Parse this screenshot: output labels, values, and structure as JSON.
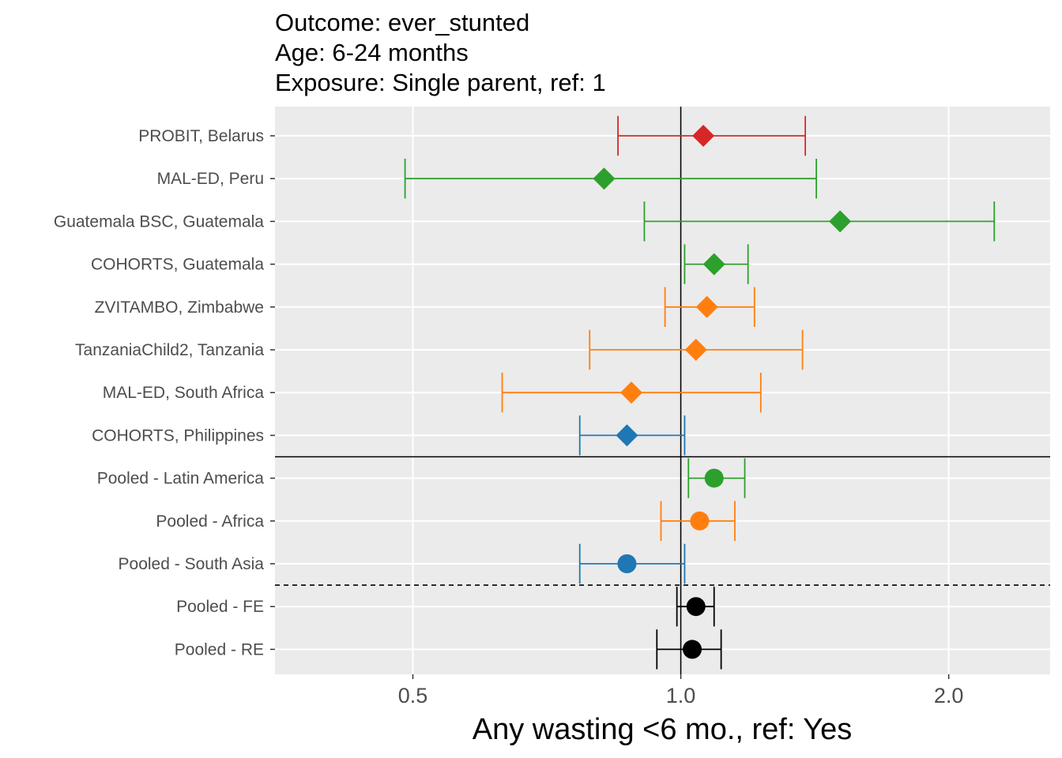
{
  "chart_data": {
    "type": "forest",
    "title_lines": [
      "Outcome: ever_stunted",
      "Age: 6-24 months",
      "Exposure: Single parent, ref: 1"
    ],
    "xlabel": "Any wasting  <6 mo., ref: Yes",
    "x_scale": "log",
    "x_ticks": [
      0.5,
      1.0,
      2.0
    ],
    "x_tick_labels": [
      "0.5",
      "1.0",
      "2.0"
    ],
    "xlim": [
      0.35,
      2.6
    ],
    "reference_line": 1.0,
    "grid": true,
    "colors": {
      "Europe": "#d62728",
      "Latin America": "#2ca02c",
      "Africa": "#ff7f0e",
      "South Asia": "#1f77b4",
      "Overall": "#000000"
    },
    "rows": [
      {
        "label": "PROBIT, Belarus",
        "estimate": 1.06,
        "lower": 0.85,
        "upper": 1.38,
        "region": "Europe",
        "shape": "diamond"
      },
      {
        "label": "MAL-ED, Peru",
        "estimate": 0.82,
        "lower": 0.49,
        "upper": 1.42,
        "region": "Latin America",
        "shape": "diamond"
      },
      {
        "label": "Guatemala BSC, Guatemala",
        "estimate": 1.51,
        "lower": 0.91,
        "upper": 2.25,
        "region": "Latin America",
        "shape": "diamond"
      },
      {
        "label": "COHORTS, Guatemala",
        "estimate": 1.09,
        "lower": 1.01,
        "upper": 1.19,
        "region": "Latin America",
        "shape": "diamond"
      },
      {
        "label": "ZVITAMBO, Zimbabwe",
        "estimate": 1.07,
        "lower": 0.96,
        "upper": 1.21,
        "region": "Africa",
        "shape": "diamond"
      },
      {
        "label": "TanzaniaChild2, Tanzania",
        "estimate": 1.04,
        "lower": 0.79,
        "upper": 1.37,
        "region": "Africa",
        "shape": "diamond"
      },
      {
        "label": "MAL-ED, South Africa",
        "estimate": 0.88,
        "lower": 0.63,
        "upper": 1.23,
        "region": "Africa",
        "shape": "diamond"
      },
      {
        "label": "COHORTS, Philippines",
        "estimate": 0.87,
        "lower": 0.77,
        "upper": 1.01,
        "region": "South Asia",
        "shape": "diamond"
      },
      {
        "label": "Pooled - Latin America",
        "estimate": 1.09,
        "lower": 1.02,
        "upper": 1.18,
        "region": "Latin America",
        "shape": "circle"
      },
      {
        "label": "Pooled - Africa",
        "estimate": 1.05,
        "lower": 0.95,
        "upper": 1.15,
        "region": "Africa",
        "shape": "circle"
      },
      {
        "label": "Pooled - South Asia",
        "estimate": 0.87,
        "lower": 0.77,
        "upper": 1.01,
        "region": "South Asia",
        "shape": "circle"
      },
      {
        "label": "Pooled - FE",
        "estimate": 1.04,
        "lower": 0.99,
        "upper": 1.09,
        "region": "Overall",
        "shape": "circle"
      },
      {
        "label": "Pooled - RE",
        "estimate": 1.03,
        "lower": 0.94,
        "upper": 1.11,
        "region": "Overall",
        "shape": "circle"
      }
    ],
    "separators": [
      {
        "after_row": 7,
        "style": "solid"
      },
      {
        "after_row": 10,
        "style": "dashed"
      }
    ]
  }
}
